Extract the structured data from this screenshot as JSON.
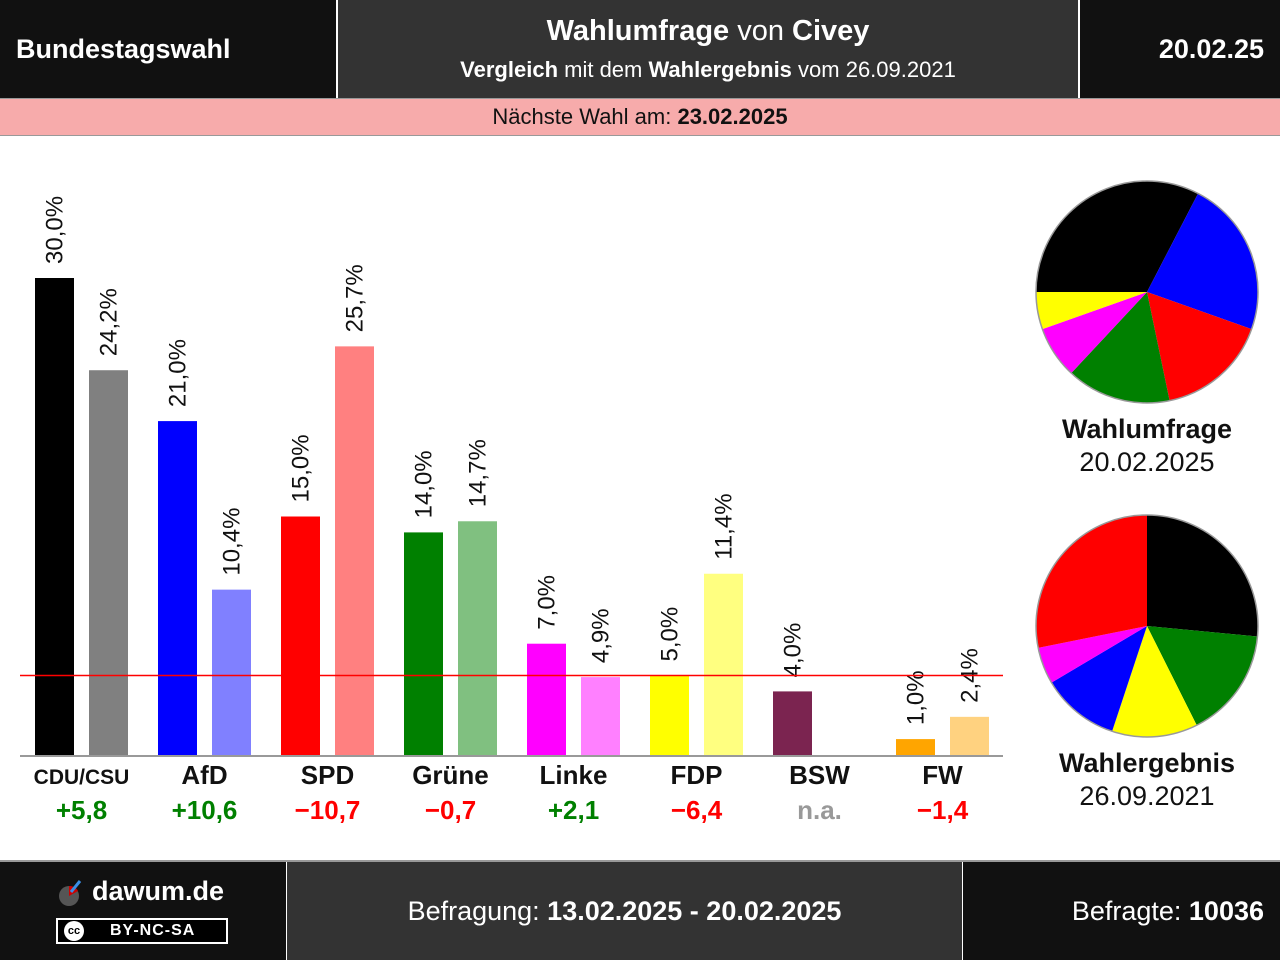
{
  "header": {
    "left_title": "Bundestagswahl",
    "title_bold1": "Wahlumfrage",
    "title_mid": " von ",
    "title_bold2": "Civey",
    "sub_bold1": "Vergleich",
    "sub_mid": " mit dem ",
    "sub_bold2": "Wahlergebnis",
    "sub_end": " vom 26.09.2021",
    "date": "20.02.25"
  },
  "banner": {
    "label": "Nächste Wahl am: ",
    "value": "23.02.2025"
  },
  "chart_data": {
    "type": "bar",
    "categories": [
      "CDU/CSU",
      "AfD",
      "SPD",
      "Grüne",
      "Linke",
      "FDP",
      "BSW",
      "FW"
    ],
    "series": [
      {
        "name": "Wahlumfrage",
        "values": [
          30.0,
          21.0,
          15.0,
          14.0,
          7.0,
          5.0,
          4.0,
          1.0
        ],
        "labels": [
          "30,0%",
          "21,0%",
          "15,0%",
          "14,0%",
          "7,0%",
          "5,0%",
          "4,0%",
          "1,0%"
        ]
      },
      {
        "name": "Wahlergebnis",
        "values": [
          24.2,
          10.4,
          25.7,
          14.7,
          4.9,
          11.4,
          null,
          2.4
        ],
        "labels": [
          "24,2%",
          "10,4%",
          "25,7%",
          "14,7%",
          "4,9%",
          "11,4%",
          "",
          "2,4%"
        ]
      }
    ],
    "colors_poll": [
      "#000000",
      "#0000ff",
      "#ff0000",
      "#008000",
      "#ff00ff",
      "#ffff00",
      "#7b2450",
      "#ffa500"
    ],
    "colors_result": [
      "#808080",
      "#8080ff",
      "#ff8080",
      "#80c080",
      "#ff80ff",
      "#ffff80",
      "#bd92a8",
      "#ffd280"
    ],
    "differences": [
      "+5,8",
      "+10,6",
      "−10,7",
      "−0,7",
      "+2,1",
      "−6,4",
      "n.a.",
      "−1,4"
    ],
    "difference_colors": [
      "#008000",
      "#008000",
      "#ff0000",
      "#ff0000",
      "#008000",
      "#ff0000",
      "#999999",
      "#ff0000"
    ],
    "threshold": 5.0,
    "threshold_color": "#ff0000",
    "ylim": [
      0,
      30
    ]
  },
  "pies": [
    {
      "name": "Wahlumfrage",
      "date": "20.02.2025",
      "slices": [
        {
          "party": "CDU/CSU",
          "value": 30.0,
          "color": "#000000"
        },
        {
          "party": "AfD",
          "value": 21.0,
          "color": "#0000ff"
        },
        {
          "party": "SPD",
          "value": 15.0,
          "color": "#ff0000"
        },
        {
          "party": "Grüne",
          "value": 14.0,
          "color": "#008000"
        },
        {
          "party": "Linke",
          "value": 7.0,
          "color": "#ff00ff"
        },
        {
          "party": "FDP",
          "value": 5.0,
          "color": "#ffff00"
        }
      ]
    },
    {
      "name": "Wahlergebnis",
      "date": "26.09.2021",
      "slices": [
        {
          "party": "CDU/CSU",
          "value": 24.2,
          "color": "#000000"
        },
        {
          "party": "Grüne",
          "value": 14.7,
          "color": "#008000"
        },
        {
          "party": "FDP",
          "value": 11.4,
          "color": "#ffff00"
        },
        {
          "party": "AfD",
          "value": 10.4,
          "color": "#0000ff"
        },
        {
          "party": "Linke",
          "value": 4.9,
          "color": "#ff00ff"
        },
        {
          "party": "SPD",
          "value": 25.7,
          "color": "#ff0000"
        }
      ]
    }
  ],
  "footer": {
    "brand": "dawum.de",
    "license": "BY-NC-SA",
    "license_mark": "cc",
    "survey_label": "Befragung: ",
    "survey_period": "13.02.2025 - 20.02.2025",
    "respondents_label": "Befragte: ",
    "respondents": "10036"
  }
}
